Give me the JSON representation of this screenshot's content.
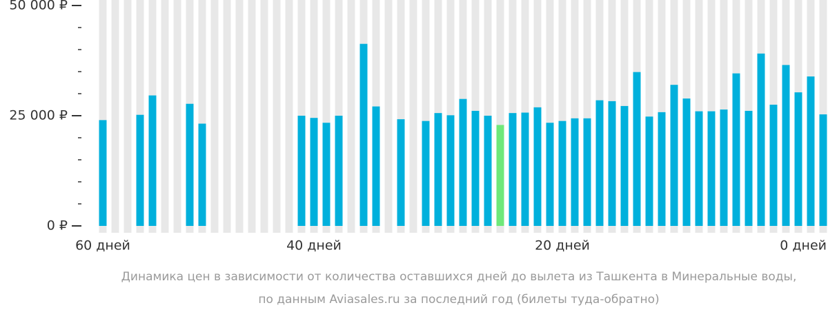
{
  "chart_data": {
    "type": "bar",
    "categories": [
      "60 дней",
      null,
      null,
      null,
      null,
      null,
      null,
      null,
      null,
      null,
      null,
      null,
      null,
      null,
      null,
      null,
      null,
      "40 дней",
      null,
      null,
      null,
      null,
      null,
      null,
      null,
      null,
      null,
      null,
      null,
      null,
      null,
      null,
      null,
      null,
      null,
      null,
      null,
      "20 дней",
      null,
      null,
      null,
      null,
      null,
      null,
      null,
      null,
      null,
      null,
      null,
      null,
      null,
      null,
      null,
      null,
      null,
      null,
      null,
      "0 дней",
      null
    ],
    "values": [
      24000,
      null,
      null,
      25200,
      29600,
      null,
      null,
      27700,
      23200,
      null,
      null,
      null,
      null,
      null,
      null,
      null,
      25000,
      24500,
      23400,
      25000,
      null,
      41300,
      27100,
      null,
      24200,
      null,
      23800,
      25600,
      25100,
      28800,
      26100,
      25000,
      22900,
      25600,
      25700,
      26900,
      23400,
      23800,
      24400,
      24400,
      28500,
      28300,
      27200,
      34900,
      24800,
      25800,
      32000,
      28900,
      26000,
      26000,
      26400,
      34600,
      26100,
      39100,
      27500,
      36500,
      30300,
      33900,
      25300
    ],
    "colors": [
      "#00b0dc",
      null,
      null,
      "#00b0dc",
      "#00b0dc",
      null,
      null,
      "#00b0dc",
      "#00b0dc",
      null,
      null,
      null,
      null,
      null,
      null,
      null,
      "#00b0dc",
      "#00b0dc",
      "#00b0dc",
      "#00b0dc",
      null,
      "#00b0dc",
      "#00b0dc",
      null,
      "#00b0dc",
      null,
      "#00b0dc",
      "#00b0dc",
      "#00b0dc",
      "#00b0dc",
      "#00b0dc",
      "#00b0dc",
      "#6fe87a",
      "#00b0dc",
      "#00b0dc",
      "#00b0dc",
      "#00b0dc",
      "#00b0dc",
      "#00b0dc",
      "#00b0dc",
      "#00b0dc",
      "#00b0dc",
      "#00b0dc",
      "#00b0dc",
      "#00b0dc",
      "#00b0dc",
      "#00b0dc",
      "#00b0dc",
      "#00b0dc",
      "#00b0dc",
      "#00b0dc",
      "#00b0dc",
      "#00b0dc",
      "#00b0dc",
      "#00b0dc",
      "#00b0dc",
      "#00b0dc",
      "#00b0dc",
      "#00b0dc"
    ],
    "ylim": [
      0,
      50000
    ],
    "yticks": [
      {
        "value": 0,
        "label": "0 ₽"
      },
      {
        "value": 25000,
        "label": "25 000 ₽"
      },
      {
        "value": 50000,
        "label": "50 000 ₽"
      }
    ],
    "minor_yticks": [
      5000,
      10000,
      15000,
      20000,
      30000,
      35000,
      40000,
      45000
    ],
    "caption": [
      "Динамика цен в зависимости от количества оставшихся дней до вылета из Ташкента в Минеральные воды,",
      "по данным Aviasales.ru за последний год (билеты туда-обратно)"
    ]
  }
}
